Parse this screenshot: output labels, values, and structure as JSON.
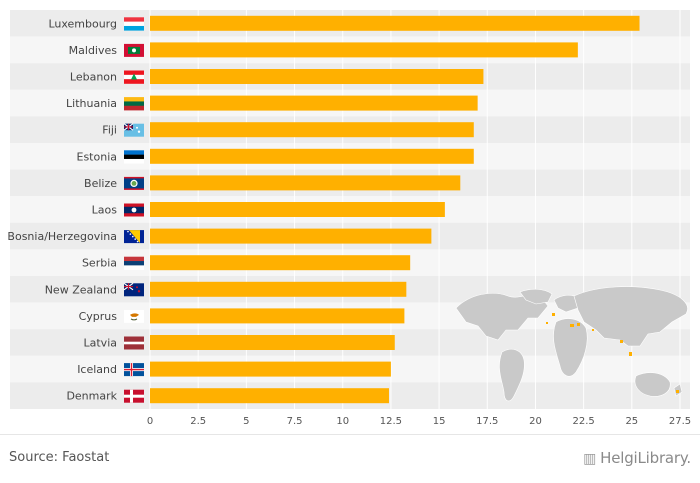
{
  "chart_data": {
    "type": "bar",
    "orientation": "horizontal",
    "categories": [
      "Luxembourg",
      "Maldives",
      "Lebanon",
      "Lithuania",
      "Fiji",
      "Estonia",
      "Belize",
      "Laos",
      "Bosnia/Herzegovina",
      "Serbia",
      "New Zealand",
      "Cyprus",
      "Latvia",
      "Iceland",
      "Denmark"
    ],
    "values": [
      25.4,
      22.2,
      17.3,
      17.0,
      16.8,
      16.8,
      16.1,
      15.3,
      14.6,
      13.5,
      13.3,
      13.2,
      12.7,
      12.5,
      12.4
    ],
    "xlim": [
      0,
      27.5
    ],
    "xticks": [
      0,
      2.5,
      5,
      7.5,
      10,
      12.5,
      15,
      17.5,
      20,
      22.5,
      25,
      27.5
    ],
    "xtick_labels": [
      "0",
      "2.5",
      "5",
      "7.5",
      "10",
      "12.5",
      "15",
      "17.5",
      "20",
      "22.5",
      "25",
      "27.5"
    ],
    "title": "",
    "xlabel": "",
    "ylabel": "",
    "bar_color": "#ffb000",
    "stripe_color": "#ececec"
  },
  "flags": [
    {
      "country": "Luxembourg",
      "icon": "luxembourg-flag-icon",
      "stripes": [
        "#ef3340",
        "#ffffff",
        "#00a3e0"
      ],
      "dir": "h"
    },
    {
      "country": "Maldives",
      "icon": "maldives-flag-icon",
      "stripes": [
        "#d21034",
        "#007e3a",
        "#d21034"
      ],
      "dir": "box"
    },
    {
      "country": "Lebanon",
      "icon": "lebanon-flag-icon",
      "stripes": [
        "#ee161f",
        "#ffffff",
        "#ee161f"
      ],
      "dir": "h",
      "emblem": "#00a651"
    },
    {
      "country": "Lithuania",
      "icon": "lithuania-flag-icon",
      "stripes": [
        "#fdb913",
        "#006a44",
        "#c1272d"
      ],
      "dir": "h"
    },
    {
      "country": "Fiji",
      "icon": "fiji-flag-icon",
      "stripes": [
        "#68bfe5"
      ],
      "dir": "solid",
      "canton": true
    },
    {
      "country": "Estonia",
      "icon": "estonia-flag-icon",
      "stripes": [
        "#0072ce",
        "#000000",
        "#ffffff"
      ],
      "dir": "h"
    },
    {
      "country": "Belize",
      "icon": "belize-flag-icon",
      "stripes": [
        "#ce1126",
        "#003f87",
        "#ce1126"
      ],
      "dir": "belize"
    },
    {
      "country": "Laos",
      "icon": "laos-flag-icon",
      "stripes": [
        "#ce1126",
        "#002868",
        "#ce1126"
      ],
      "dir": "laos"
    },
    {
      "country": "Bosnia/Herzegovina",
      "icon": "bosnia-flag-icon",
      "stripes": [
        "#002395",
        "#fecb00"
      ],
      "dir": "bosnia"
    },
    {
      "country": "Serbia",
      "icon": "serbia-flag-icon",
      "stripes": [
        "#c6363c",
        "#0c4076",
        "#ffffff"
      ],
      "dir": "h"
    },
    {
      "country": "New Zealand",
      "icon": "new-zealand-flag-icon",
      "stripes": [
        "#00247d"
      ],
      "dir": "solid",
      "canton": true
    },
    {
      "country": "Cyprus",
      "icon": "cyprus-flag-icon",
      "stripes": [
        "#ffffff"
      ],
      "dir": "cyprus"
    },
    {
      "country": "Latvia",
      "icon": "latvia-flag-icon",
      "stripes": [
        "#9e3039",
        "#ffffff",
        "#9e3039"
      ],
      "dir": "latvia"
    },
    {
      "country": "Iceland",
      "icon": "iceland-flag-icon",
      "stripes": [
        "#02529c",
        "#ffffff",
        "#dc1e35"
      ],
      "dir": "nordic"
    },
    {
      "country": "Denmark",
      "icon": "denmark-flag-icon",
      "stripes": [
        "#c8102e",
        "#ffffff",
        "#c8102e"
      ],
      "dir": "nordic"
    }
  ],
  "world_map_icon": "world-map-icon",
  "map_colors": {
    "land": "#c9c9c9",
    "highlight": "#ffb000"
  },
  "footer": {
    "source": "Source: Faostat",
    "brand": "HelgiLibrary.",
    "brand_icon": "library-logo-icon"
  }
}
